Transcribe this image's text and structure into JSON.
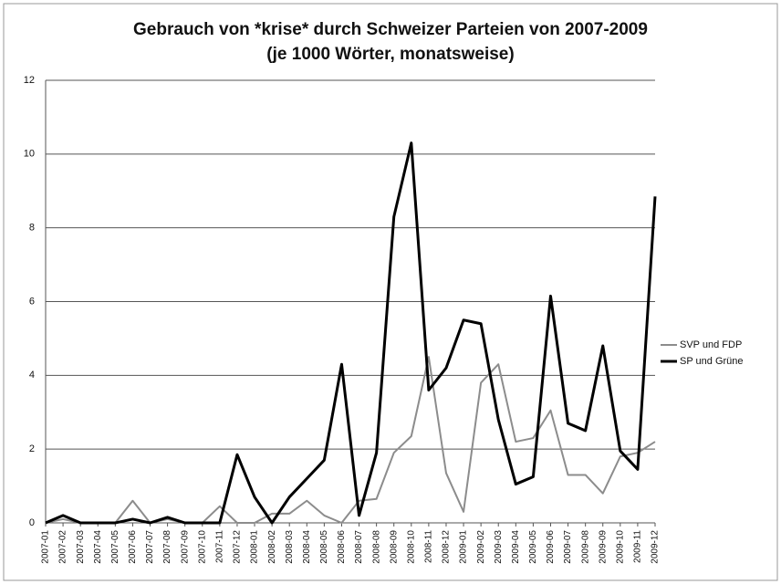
{
  "chart_data": {
    "type": "line",
    "title": "Gebrauch von *krise* durch Schweizer Parteien von 2007-2009",
    "subtitle": "(je 1000 Wörter, monatsweise)",
    "categories": [
      "2007-01",
      "2007-02",
      "2007-03",
      "2007-04",
      "2007-05",
      "2007-06",
      "2007-07",
      "2007-08",
      "2007-09",
      "2007-10",
      "2007-11",
      "2007-12",
      "2008-01",
      "2008-02",
      "2008-03",
      "2008-04",
      "2008-05",
      "2008-06",
      "2008-07",
      "2008-08",
      "2008-09",
      "2008-10",
      "2008-11",
      "2008-12",
      "2009-01",
      "2009-02",
      "2009-03",
      "2009-04",
      "2009-05",
      "2009-06",
      "2009-07",
      "2009-08",
      "2009-09",
      "2009-10",
      "2009-11",
      "2009-12"
    ],
    "series": [
      {
        "name": "SVP und FDP",
        "color": "#8c8c8c",
        "width": 2,
        "values": [
          0,
          0.1,
          0,
          0,
          0,
          0.6,
          0,
          0.1,
          0,
          0,
          0.45,
          0,
          0,
          0.25,
          0.25,
          0.6,
          0.2,
          0,
          0.6,
          0.65,
          1.9,
          2.35,
          4.5,
          1.35,
          0.3,
          3.8,
          4.3,
          2.2,
          2.3,
          3.05,
          1.3,
          1.3,
          0.8,
          1.8,
          1.9,
          2.2
        ]
      },
      {
        "name": "SP und Grüne",
        "color": "#000000",
        "width": 3,
        "values": [
          0,
          0.2,
          0,
          0,
          0,
          0.1,
          0,
          0.15,
          0,
          0,
          0,
          1.85,
          0.7,
          0,
          0.7,
          1.2,
          1.7,
          4.3,
          0.2,
          1.9,
          8.3,
          10.3,
          3.6,
          4.2,
          5.5,
          5.4,
          2.8,
          1.05,
          1.25,
          6.15,
          2.7,
          2.5,
          4.8,
          1.95,
          1.45,
          8.85
        ]
      }
    ],
    "ylim": [
      0,
      12
    ],
    "yticks": [
      0,
      2,
      4,
      6,
      8,
      10,
      12
    ],
    "grid": true,
    "legend": "right"
  }
}
